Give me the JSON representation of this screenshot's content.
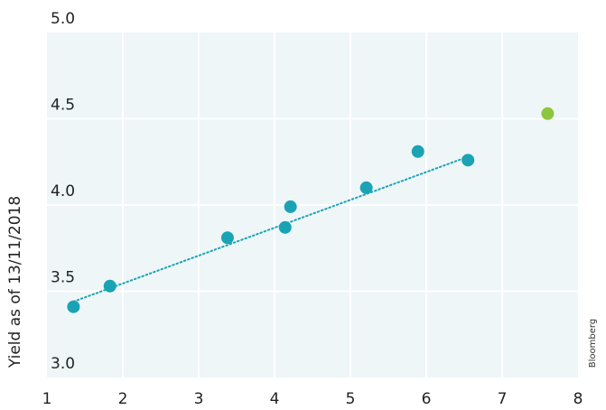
{
  "chart_data": {
    "type": "scatter",
    "title": "",
    "xlabel": "",
    "ylabel": "Yield as of 13/11/2018",
    "source": "Bloomberg",
    "xlim": [
      1,
      8
    ],
    "ylim": [
      3.0,
      5.0
    ],
    "x_ticks": [
      1,
      2,
      3,
      4,
      5,
      6,
      7,
      8
    ],
    "y_ticks": [
      3.0,
      3.5,
      4.0,
      4.5,
      5.0
    ],
    "grid": true,
    "series": [
      {
        "color": "#1aa3b5",
        "points": [
          {
            "x": 1.35,
            "y": 3.41
          },
          {
            "x": 1.83,
            "y": 3.53
          },
          {
            "x": 3.38,
            "y": 3.81
          },
          {
            "x": 4.14,
            "y": 3.87
          },
          {
            "x": 4.21,
            "y": 3.99
          },
          {
            "x": 5.21,
            "y": 4.1
          },
          {
            "x": 5.89,
            "y": 4.31
          },
          {
            "x": 6.55,
            "y": 4.26
          }
        ]
      },
      {
        "color": "#8cc63f",
        "points": [
          {
            "x": 7.6,
            "y": 4.53
          }
        ]
      }
    ],
    "trendline": {
      "color": "#1aa3b5",
      "style": "dotted",
      "from": {
        "x": 1.35,
        "y": 3.44
      },
      "to": {
        "x": 6.55,
        "y": 4.28
      }
    },
    "background_color": "#eef6f8",
    "gridline_color": "#ffffff"
  }
}
